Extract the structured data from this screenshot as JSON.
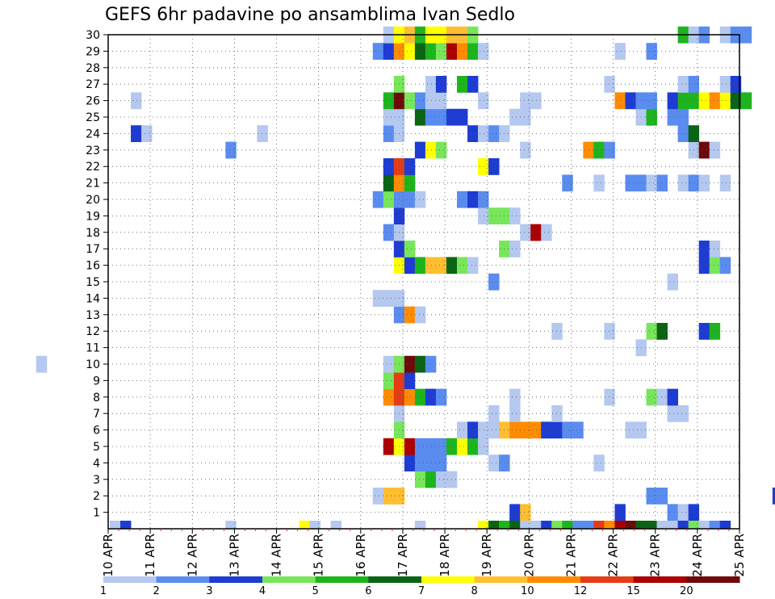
{
  "chart_data": {
    "type": "heatmap",
    "title": "GEFS 6hr padavine po ansamblima Ivan Sedlo",
    "xlabel": "",
    "ylabel": "",
    "x_ticks": [
      "10 APR",
      "11 APR",
      "12 APR",
      "13 APR",
      "14 APR",
      "15 APR",
      "16 APR",
      "17 APR",
      "18 APR",
      "19 APR",
      "20 APR",
      "21 APR",
      "22 APR",
      "23 APR",
      "24 APR",
      "25 APR"
    ],
    "x_range": [
      0,
      60
    ],
    "x_unit": "6-hour steps from 10 APR",
    "y_ticks": [
      1,
      2,
      3,
      4,
      5,
      6,
      7,
      8,
      9,
      10,
      11,
      12,
      13,
      14,
      15,
      16,
      17,
      18,
      19,
      20,
      21,
      22,
      23,
      24,
      25,
      26,
      27,
      28,
      29,
      30
    ],
    "y_range": [
      0,
      30
    ],
    "grid": true,
    "legend": {
      "labels": [
        "1",
        "2",
        "3",
        "4",
        "5",
        "6",
        "7",
        "8",
        "10",
        "12",
        "15",
        "20"
      ],
      "colors": [
        "#b4c8f0",
        "#5a8cf0",
        "#1e3cd2",
        "#78e65a",
        "#1eb41e",
        "#0a6414",
        "#ffff00",
        "#ffbe32",
        "#ff8c00",
        "#e63c14",
        "#aa0000",
        "#6e0a0a"
      ]
    },
    "colorbar_bins": [
      1,
      2,
      3,
      4,
      5,
      6,
      7,
      8,
      10,
      12,
      15,
      20
    ],
    "bottom_row": {
      "y": 0,
      "cells": [
        [
          10,
          0
        ],
        [
          11,
          2
        ],
        [
          21,
          0
        ],
        [
          28,
          6
        ],
        [
          29,
          0
        ],
        [
          31,
          0
        ],
        [
          39,
          0
        ],
        [
          45,
          6
        ],
        [
          46,
          5
        ],
        [
          47,
          4
        ],
        [
          48,
          5
        ],
        [
          49,
          0
        ],
        [
          50,
          0
        ],
        [
          51,
          2
        ],
        [
          52,
          3
        ],
        [
          53,
          4
        ],
        [
          54,
          1
        ],
        [
          55,
          1
        ],
        [
          56,
          9
        ],
        [
          57,
          8
        ],
        [
          58,
          10
        ],
        [
          59,
          11
        ],
        [
          60,
          5
        ],
        [
          61,
          5
        ],
        [
          62,
          0
        ],
        [
          63,
          0
        ],
        [
          64,
          2
        ],
        [
          65,
          3
        ],
        [
          66,
          0
        ],
        [
          67,
          1
        ],
        [
          68,
          2
        ]
      ]
    },
    "cells": [
      [
        48,
        1,
        2
      ],
      [
        49,
        1,
        7
      ],
      [
        58,
        1,
        2
      ],
      [
        63,
        1,
        1
      ],
      [
        64,
        1,
        0
      ],
      [
        65,
        1,
        2
      ],
      [
        78,
        1,
        0
      ],
      [
        79,
        1,
        3
      ],
      [
        80,
        1,
        3
      ],
      [
        35,
        2,
        0
      ],
      [
        36,
        2,
        7
      ],
      [
        37,
        2,
        7
      ],
      [
        61,
        2,
        1
      ],
      [
        62,
        2,
        1
      ],
      [
        73,
        2,
        2
      ],
      [
        39,
        3,
        3
      ],
      [
        40,
        3,
        4
      ],
      [
        41,
        3,
        0
      ],
      [
        42,
        3,
        0
      ],
      [
        38,
        4,
        2
      ],
      [
        39,
        4,
        1
      ],
      [
        40,
        4,
        1
      ],
      [
        41,
        4,
        1
      ],
      [
        46,
        4,
        0
      ],
      [
        47,
        4,
        1
      ],
      [
        56,
        4,
        0
      ],
      [
        36,
        5,
        10
      ],
      [
        37,
        5,
        6
      ],
      [
        38,
        5,
        10
      ],
      [
        39,
        5,
        1
      ],
      [
        40,
        5,
        1
      ],
      [
        41,
        5,
        1
      ],
      [
        42,
        5,
        4
      ],
      [
        43,
        5,
        6
      ],
      [
        44,
        5,
        4
      ],
      [
        45,
        5,
        0
      ],
      [
        76,
        5,
        0
      ],
      [
        37,
        6,
        3
      ],
      [
        43,
        6,
        0
      ],
      [
        44,
        6,
        2
      ],
      [
        45,
        6,
        0
      ],
      [
        46,
        6,
        0
      ],
      [
        47,
        6,
        7
      ],
      [
        48,
        6,
        8
      ],
      [
        49,
        6,
        8
      ],
      [
        50,
        6,
        8
      ],
      [
        51,
        6,
        2
      ],
      [
        52,
        6,
        2
      ],
      [
        53,
        6,
        1
      ],
      [
        54,
        6,
        1
      ],
      [
        59,
        6,
        0
      ],
      [
        60,
        6,
        0
      ],
      [
        76,
        6,
        0
      ],
      [
        77,
        6,
        0
      ],
      [
        37,
        7,
        0
      ],
      [
        46,
        7,
        0
      ],
      [
        48,
        7,
        0
      ],
      [
        52,
        7,
        0
      ],
      [
        63,
        7,
        0
      ],
      [
        64,
        7,
        0
      ],
      [
        36,
        8,
        8
      ],
      [
        37,
        8,
        9
      ],
      [
        38,
        8,
        8
      ],
      [
        39,
        8,
        4
      ],
      [
        40,
        8,
        2
      ],
      [
        41,
        8,
        1
      ],
      [
        48,
        8,
        0
      ],
      [
        57,
        8,
        0
      ],
      [
        61,
        8,
        3
      ],
      [
        62,
        8,
        0
      ],
      [
        63,
        8,
        2
      ],
      [
        75,
        8,
        0
      ],
      [
        36,
        9,
        3
      ],
      [
        37,
        9,
        9
      ],
      [
        38,
        9,
        2
      ],
      [
        3,
        10,
        0
      ],
      [
        36,
        10,
        0
      ],
      [
        37,
        10,
        3
      ],
      [
        38,
        10,
        11
      ],
      [
        39,
        10,
        5
      ],
      [
        40,
        10,
        1
      ],
      [
        77,
        10,
        0
      ],
      [
        78,
        10,
        4
      ],
      [
        79,
        10,
        1
      ],
      [
        60,
        11,
        0
      ],
      [
        52,
        12,
        0
      ],
      [
        57,
        12,
        0
      ],
      [
        61,
        12,
        3
      ],
      [
        62,
        12,
        5
      ],
      [
        66,
        12,
        2
      ],
      [
        67,
        12,
        4
      ],
      [
        77,
        12,
        2
      ],
      [
        78,
        12,
        1
      ],
      [
        37,
        13,
        1
      ],
      [
        38,
        13,
        8
      ],
      [
        39,
        13,
        0
      ],
      [
        77,
        13,
        5
      ],
      [
        78,
        13,
        11
      ],
      [
        79,
        13,
        8
      ],
      [
        35,
        14,
        0
      ],
      [
        36,
        14,
        0
      ],
      [
        37,
        14,
        0
      ],
      [
        77,
        14,
        0
      ],
      [
        46,
        15,
        1
      ],
      [
        63,
        15,
        0
      ],
      [
        37,
        16,
        6
      ],
      [
        38,
        16,
        2
      ],
      [
        39,
        16,
        4
      ],
      [
        40,
        16,
        7
      ],
      [
        41,
        16,
        7
      ],
      [
        42,
        16,
        5
      ],
      [
        43,
        16,
        3
      ],
      [
        44,
        16,
        0
      ],
      [
        66,
        16,
        2
      ],
      [
        67,
        16,
        3
      ],
      [
        68,
        16,
        1
      ],
      [
        77,
        16,
        2
      ],
      [
        78,
        16,
        1
      ],
      [
        37,
        17,
        2
      ],
      [
        38,
        17,
        3
      ],
      [
        47,
        17,
        3
      ],
      [
        48,
        17,
        0
      ],
      [
        66,
        17,
        2
      ],
      [
        67,
        17,
        0
      ],
      [
        36,
        18,
        1
      ],
      [
        37,
        18,
        0
      ],
      [
        49,
        18,
        0
      ],
      [
        50,
        18,
        10
      ],
      [
        51,
        18,
        0
      ],
      [
        74,
        18,
        0
      ],
      [
        75,
        18,
        0
      ],
      [
        37,
        19,
        2
      ],
      [
        45,
        19,
        0
      ],
      [
        46,
        19,
        3
      ],
      [
        47,
        19,
        3
      ],
      [
        48,
        19,
        0
      ],
      [
        35,
        20,
        1
      ],
      [
        36,
        20,
        3
      ],
      [
        37,
        20,
        1
      ],
      [
        38,
        20,
        1
      ],
      [
        39,
        20,
        0
      ],
      [
        43,
        20,
        1
      ],
      [
        44,
        20,
        2
      ],
      [
        45,
        20,
        1
      ],
      [
        36,
        21,
        5
      ],
      [
        37,
        21,
        8
      ],
      [
        38,
        21,
        4
      ],
      [
        53,
        21,
        1
      ],
      [
        56,
        21,
        0
      ],
      [
        59,
        21,
        1
      ],
      [
        60,
        21,
        1
      ],
      [
        61,
        21,
        0
      ],
      [
        62,
        21,
        1
      ],
      [
        64,
        21,
        0
      ],
      [
        65,
        21,
        1
      ],
      [
        66,
        21,
        0
      ],
      [
        68,
        21,
        0
      ],
      [
        76,
        21,
        9
      ],
      [
        77,
        21,
        3
      ],
      [
        36,
        22,
        2
      ],
      [
        37,
        22,
        9
      ],
      [
        38,
        22,
        2
      ],
      [
        45,
        22,
        6
      ],
      [
        46,
        22,
        2
      ],
      [
        21,
        23,
        1
      ],
      [
        39,
        23,
        2
      ],
      [
        40,
        23,
        6
      ],
      [
        41,
        23,
        3
      ],
      [
        49,
        23,
        0
      ],
      [
        55,
        23,
        8
      ],
      [
        56,
        23,
        4
      ],
      [
        57,
        23,
        1
      ],
      [
        65,
        23,
        0
      ],
      [
        66,
        23,
        11
      ],
      [
        67,
        23,
        0
      ],
      [
        12,
        24,
        2
      ],
      [
        13,
        24,
        0
      ],
      [
        24,
        24,
        0
      ],
      [
        36,
        24,
        1
      ],
      [
        37,
        24,
        0
      ],
      [
        44,
        24,
        2
      ],
      [
        45,
        24,
        0
      ],
      [
        46,
        24,
        1
      ],
      [
        47,
        24,
        0
      ],
      [
        64,
        24,
        1
      ],
      [
        65,
        24,
        5
      ],
      [
        36,
        25,
        0
      ],
      [
        37,
        25,
        0
      ],
      [
        39,
        25,
        5
      ],
      [
        40,
        25,
        1
      ],
      [
        41,
        25,
        1
      ],
      [
        42,
        25,
        2
      ],
      [
        43,
        25,
        2
      ],
      [
        48,
        25,
        0
      ],
      [
        49,
        25,
        0
      ],
      [
        60,
        25,
        0
      ],
      [
        61,
        25,
        4
      ],
      [
        63,
        25,
        1
      ],
      [
        64,
        25,
        1
      ],
      [
        12,
        26,
        0
      ],
      [
        36,
        26,
        4
      ],
      [
        37,
        26,
        11
      ],
      [
        38,
        26,
        3
      ],
      [
        39,
        26,
        1
      ],
      [
        40,
        26,
        0
      ],
      [
        41,
        26,
        0
      ],
      [
        45,
        26,
        0
      ],
      [
        49,
        26,
        0
      ],
      [
        50,
        26,
        0
      ],
      [
        58,
        26,
        8
      ],
      [
        59,
        26,
        2
      ],
      [
        60,
        26,
        1
      ],
      [
        61,
        26,
        1
      ],
      [
        63,
        26,
        2
      ],
      [
        64,
        26,
        4
      ],
      [
        65,
        26,
        4
      ],
      [
        66,
        26,
        6
      ],
      [
        67,
        26,
        8
      ],
      [
        68,
        26,
        6
      ],
      [
        69,
        26,
        5
      ],
      [
        70,
        26,
        4
      ],
      [
        37,
        27,
        3
      ],
      [
        40,
        27,
        0
      ],
      [
        41,
        27,
        2
      ],
      [
        43,
        27,
        4
      ],
      [
        44,
        27,
        2
      ],
      [
        57,
        27,
        0
      ],
      [
        64,
        27,
        0
      ],
      [
        65,
        27,
        1
      ],
      [
        68,
        27,
        0
      ],
      [
        69,
        27,
        2
      ],
      [
        35,
        29,
        1
      ],
      [
        36,
        29,
        2
      ],
      [
        37,
        29,
        8
      ],
      [
        38,
        29,
        6
      ],
      [
        39,
        29,
        5
      ],
      [
        40,
        29,
        4
      ],
      [
        41,
        29,
        3
      ],
      [
        42,
        29,
        10
      ],
      [
        43,
        29,
        8
      ],
      [
        44,
        29,
        4
      ],
      [
        45,
        29,
        0
      ],
      [
        58,
        29,
        0
      ],
      [
        61,
        29,
        1
      ],
      [
        36,
        30,
        0
      ],
      [
        37,
        30,
        6
      ],
      [
        38,
        30,
        7
      ],
      [
        39,
        30,
        4
      ],
      [
        40,
        30,
        6
      ],
      [
        41,
        30,
        6
      ],
      [
        42,
        30,
        7
      ],
      [
        43,
        30,
        7
      ],
      [
        44,
        30,
        3
      ],
      [
        64,
        30,
        4
      ],
      [
        65,
        30,
        0
      ],
      [
        66,
        30,
        1
      ],
      [
        68,
        30,
        0
      ],
      [
        69,
        30,
        1
      ],
      [
        70,
        30,
        1
      ]
    ]
  }
}
